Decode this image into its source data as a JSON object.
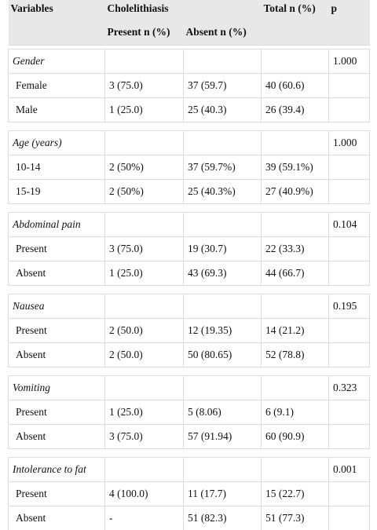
{
  "header": {
    "variables": "Variables",
    "group": "Cholelithiasis",
    "total": "Total n (%)",
    "p": "p",
    "present": "Present n (%)",
    "absent": "Absent n (%)"
  },
  "groups": [
    {
      "title": "Gender",
      "p": "1.000",
      "rows": [
        [
          "Female",
          "3 (75.0)",
          "37 (59.7)",
          "40 (60.6)"
        ],
        [
          "Male",
          "1 (25.0)",
          "25 (40.3)",
          "26 (39.4)"
        ]
      ]
    },
    {
      "title": "Age (years)",
      "p": "1.000",
      "rows": [
        [
          "10-14",
          "2 (50%)",
          "37 (59.7%)",
          "39 (59.1%)"
        ],
        [
          "15-19",
          "2 (50%)",
          "25 (40.3%)",
          "27 (40.9%)"
        ]
      ]
    },
    {
      "title": "Abdominal pain",
      "p": "0.104",
      "rows": [
        [
          "Present",
          "3 (75.0)",
          "19 (30.7)",
          "22 (33.3)"
        ],
        [
          "Absent",
          "1 (25.0)",
          "43 (69.3)",
          "44 (66.7)"
        ]
      ]
    },
    {
      "title": "Nausea",
      "p": "0.195",
      "rows": [
        [
          "Present",
          "2 (50.0)",
          "12 (19.35)",
          "14 (21.2)"
        ],
        [
          "Absent",
          "2 (50.0)",
          "50 (80.65)",
          "52 (78.8)"
        ]
      ]
    },
    {
      "title": "Vomiting",
      "p": "0.323",
      "rows": [
        [
          "Present",
          "1 (25.0)",
          "5 (8.06)",
          "6 (9.1)"
        ],
        [
          "Absent",
          "3 (75.0)",
          "57 (91.94)",
          "60 (90.9)"
        ]
      ]
    },
    {
      "title": "Intolerance to fat",
      "p": "0.001",
      "rows": [
        [
          "Present",
          "4 (100.0)",
          "11 (17.7)",
          "15 (22.7)"
        ],
        [
          "Absent",
          "-",
          "51 (82.3)",
          "51 (77.3)"
        ]
      ]
    }
  ]
}
